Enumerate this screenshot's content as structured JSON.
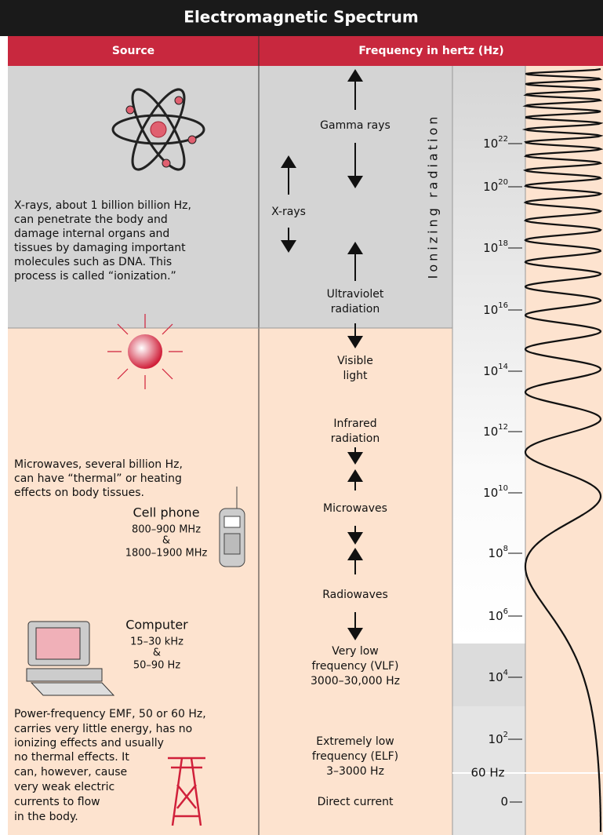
{
  "header": {
    "title": "Electromagnetic Spectrum",
    "source_heading": "Source",
    "frequency_heading": "Frequency in hertz (Hz)"
  },
  "ionizing_label": "Ionizing radiation",
  "sources": {
    "xrays": [
      "X-rays, about 1 billion billion Hz,",
      "can penetrate the body and",
      "damage internal organs and",
      "tissues by damaging important",
      "molecules such as DNA. This",
      "process is called “ionization.”"
    ],
    "microwaves": [
      "Microwaves, several billion Hz,",
      "can have “thermal” or heating",
      "effects on body tissues."
    ],
    "cell_phone": [
      "Cell phone",
      "800–900 MHz",
      "&",
      "1800–1900 MHz"
    ],
    "computer": [
      "Computer",
      "15–30 kHz",
      "&",
      "50–90 Hz"
    ],
    "power": [
      "Power-frequency EMF, 50 or 60 Hz,",
      "carries very little energy, has no",
      "ionizing effects and usually",
      "no thermal effects. It",
      "can, however, cause",
      "very weak electric",
      "currents to flow",
      "in the body."
    ]
  },
  "bands": [
    [
      "Gamma rays"
    ],
    [
      "X-rays"
    ],
    [
      "Ultraviolet",
      "radiation"
    ],
    [
      "Visible",
      "light"
    ],
    [
      "Infrared",
      "radiation"
    ],
    [
      "Microwaves"
    ],
    [
      "Radiowaves"
    ],
    [
      "Very low",
      "frequency (VLF)",
      "3000–30,000 Hz"
    ],
    [
      "Extremely low",
      "frequency (ELF)",
      "3–3000 Hz"
    ],
    [
      "Direct current"
    ]
  ],
  "scale": [
    {
      "base": "10",
      "exp": "22"
    },
    {
      "base": "10",
      "exp": "20"
    },
    {
      "base": "10",
      "exp": "18"
    },
    {
      "base": "10",
      "exp": "16"
    },
    {
      "base": "10",
      "exp": "14"
    },
    {
      "base": "10",
      "exp": "12"
    },
    {
      "base": "10",
      "exp": "10"
    },
    {
      "base": "10",
      "exp": "8"
    },
    {
      "base": "10",
      "exp": "6"
    },
    {
      "base": "10",
      "exp": "4"
    },
    {
      "base": "10",
      "exp": "2"
    }
  ],
  "scale_60hz": "60 Hz",
  "scale_zero": "0"
}
